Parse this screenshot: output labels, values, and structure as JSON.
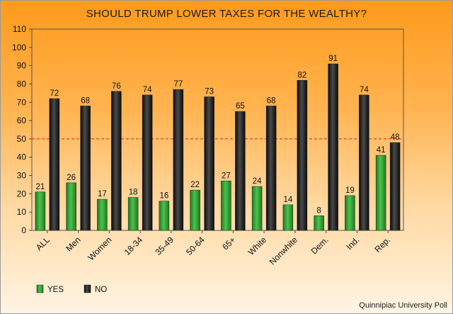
{
  "chart_data": {
    "type": "bar",
    "title": "SHOULD TRUMP LOWER TAXES FOR THE WEALTHY?",
    "categories": [
      "ALL",
      "Men",
      "Women",
      "18-34",
      "35-49",
      "50-64",
      "65+",
      "White",
      "Nonwhite",
      "Dem.",
      "Ind.",
      "Rep."
    ],
    "series": [
      {
        "name": "YES",
        "values": [
          21,
          26,
          17,
          18,
          16,
          22,
          27,
          24,
          14,
          8,
          19,
          41
        ]
      },
      {
        "name": "NO",
        "values": [
          72,
          68,
          76,
          74,
          77,
          73,
          65,
          68,
          82,
          91,
          74,
          48
        ]
      }
    ],
    "ylim": [
      0,
      110
    ],
    "yticks": [
      0,
      10,
      20,
      30,
      40,
      50,
      60,
      70,
      80,
      90,
      100,
      110
    ],
    "reference_line": {
      "value": 50,
      "style": "dashed",
      "color": "#e02020"
    },
    "colors": {
      "YES": "#2e9e2e",
      "NO": "#1a1a1a"
    },
    "legend_position": "bottom-left",
    "grid": false,
    "source": "Quinnipiac University Poll"
  }
}
